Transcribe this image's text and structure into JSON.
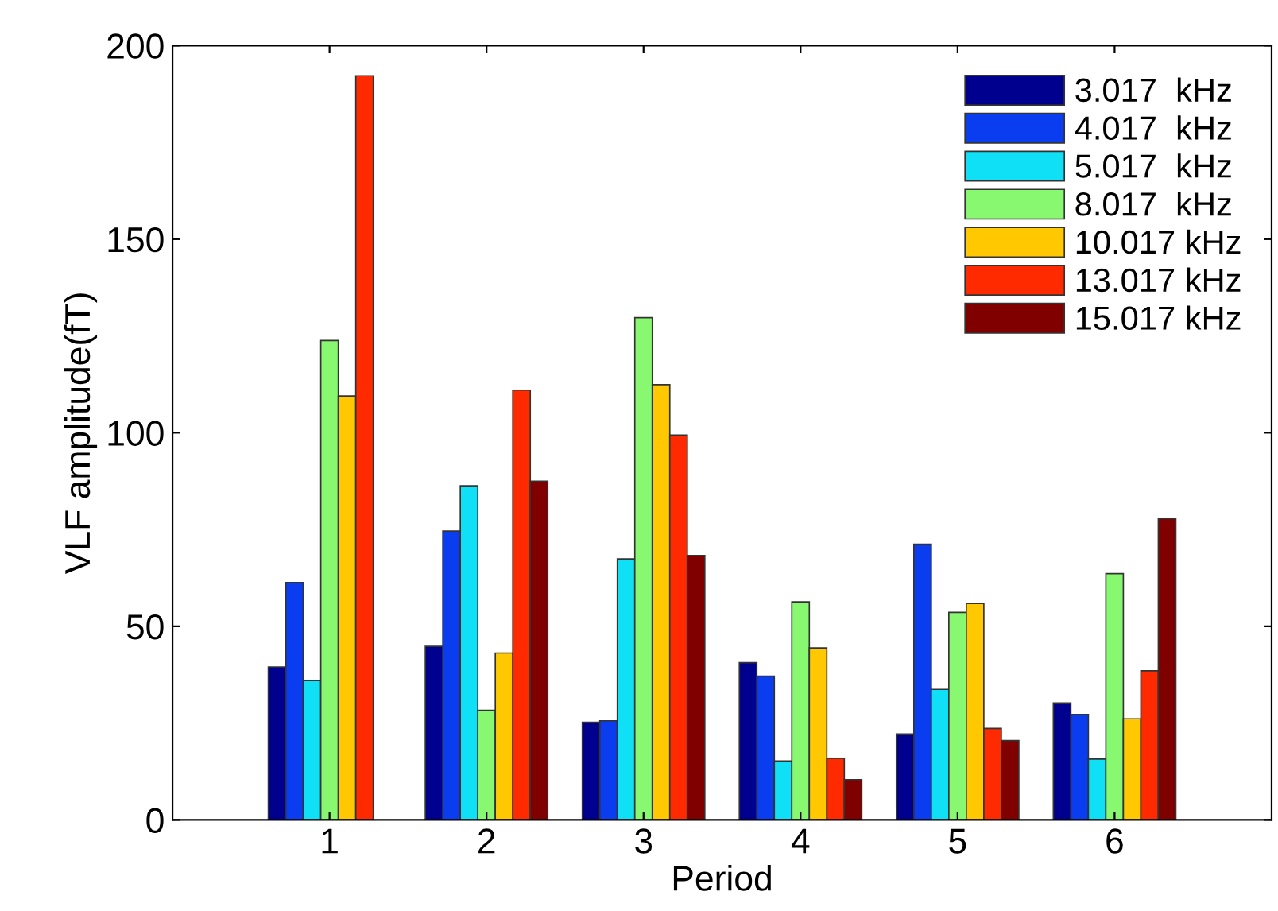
{
  "chart_data": {
    "type": "bar",
    "xlabel": "Period",
    "ylabel": "VLF amplitude(fT)",
    "x": [
      1,
      2,
      3,
      4,
      5,
      6
    ],
    "xlim": [
      0,
      7
    ],
    "xticks": [
      1,
      2,
      3,
      4,
      5,
      6
    ],
    "ylim": [
      0,
      200
    ],
    "yticks": [
      0,
      50,
      100,
      150,
      200
    ],
    "grid": false,
    "legend": "top right",
    "series": [
      {
        "name": "3.017  kHz",
        "color": "#00008f",
        "values": [
          39.5,
          44.8,
          25.2,
          40.6,
          22.2,
          30.2
        ]
      },
      {
        "name": "4.017  kHz",
        "color": "#0a3cf0",
        "values": [
          61.3,
          74.6,
          25.6,
          37.1,
          71.2,
          27.2
        ]
      },
      {
        "name": "5.017  kHz",
        "color": "#10e0f5",
        "values": [
          36.0,
          86.3,
          67.4,
          15.2,
          33.7,
          15.7
        ]
      },
      {
        "name": "8.017  kHz",
        "color": "#88f870",
        "values": [
          123.8,
          28.3,
          129.7,
          56.3,
          53.6,
          63.6
        ]
      },
      {
        "name": "10.017 kHz",
        "color": "#ffc800",
        "values": [
          109.5,
          43.1,
          112.4,
          44.4,
          55.9,
          26.1
        ]
      },
      {
        "name": "13.017 kHz",
        "color": "#ff2a00",
        "values": [
          192.2,
          111.0,
          99.4,
          15.9,
          23.6,
          38.5
        ]
      },
      {
        "name": "15.017 kHz",
        "color": "#800000",
        "values": [
          null,
          87.5,
          68.3,
          10.4,
          20.5,
          77.8
        ]
      }
    ]
  }
}
